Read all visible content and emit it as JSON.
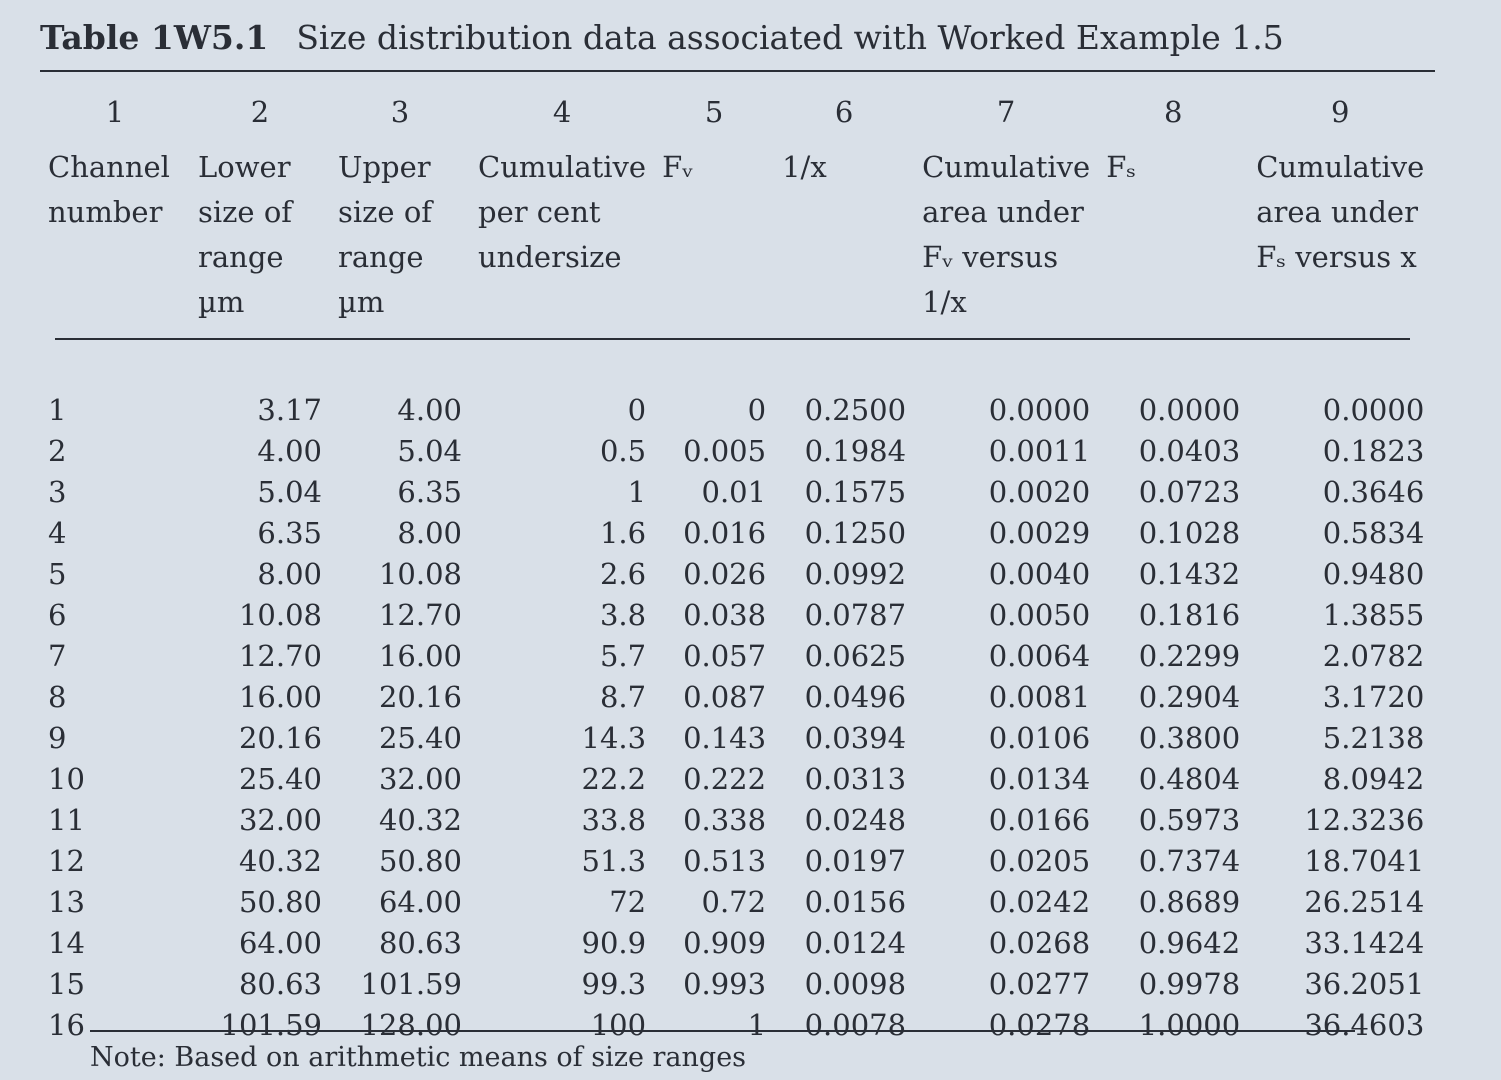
{
  "title": {
    "label": "Table 1W5.1",
    "text": "Size distribution data associated with Worked Example 1.5"
  },
  "table": {
    "headers": [
      {
        "number": "1",
        "label": [
          "Channel",
          "number"
        ]
      },
      {
        "number": "2",
        "label": [
          "Lower",
          "size of",
          "range",
          "µm"
        ]
      },
      {
        "number": "3",
        "label": [
          "Upper",
          "size of",
          "range",
          "µm"
        ]
      },
      {
        "number": "4",
        "label": [
          "Cumulative",
          "per cent",
          "undersize"
        ]
      },
      {
        "number": "5",
        "label": [
          "Fᵥ"
        ]
      },
      {
        "number": "6",
        "label": [
          "1/x"
        ]
      },
      {
        "number": "7",
        "label": [
          "Cumulative",
          "area under",
          "Fᵥ versus",
          "1/x"
        ]
      },
      {
        "number": "8",
        "label": [
          "Fₛ"
        ]
      },
      {
        "number": "9",
        "label": [
          "Cumulative",
          "area under",
          "Fₛ versus x"
        ]
      }
    ],
    "rows": [
      [
        "1",
        "3.17",
        "4.00",
        "0",
        "0",
        "0.2500",
        "0.0000",
        "0.0000",
        "0.0000"
      ],
      [
        "2",
        "4.00",
        "5.04",
        "0.5",
        "0.005",
        "0.1984",
        "0.0011",
        "0.0403",
        "0.1823"
      ],
      [
        "3",
        "5.04",
        "6.35",
        "1",
        "0.01",
        "0.1575",
        "0.0020",
        "0.0723",
        "0.3646"
      ],
      [
        "4",
        "6.35",
        "8.00",
        "1.6",
        "0.016",
        "0.1250",
        "0.0029",
        "0.1028",
        "0.5834"
      ],
      [
        "5",
        "8.00",
        "10.08",
        "2.6",
        "0.026",
        "0.0992",
        "0.0040",
        "0.1432",
        "0.9480"
      ],
      [
        "6",
        "10.08",
        "12.70",
        "3.8",
        "0.038",
        "0.0787",
        "0.0050",
        "0.1816",
        "1.3855"
      ],
      [
        "7",
        "12.70",
        "16.00",
        "5.7",
        "0.057",
        "0.0625",
        "0.0064",
        "0.2299",
        "2.0782"
      ],
      [
        "8",
        "16.00",
        "20.16",
        "8.7",
        "0.087",
        "0.0496",
        "0.0081",
        "0.2904",
        "3.1720"
      ],
      [
        "9",
        "20.16",
        "25.40",
        "14.3",
        "0.143",
        "0.0394",
        "0.0106",
        "0.3800",
        "5.2138"
      ],
      [
        "10",
        "25.40",
        "32.00",
        "22.2",
        "0.222",
        "0.0313",
        "0.0134",
        "0.4804",
        "8.0942"
      ],
      [
        "11",
        "32.00",
        "40.32",
        "33.8",
        "0.338",
        "0.0248",
        "0.0166",
        "0.5973",
        "12.3236"
      ],
      [
        "12",
        "40.32",
        "50.80",
        "51.3",
        "0.513",
        "0.0197",
        "0.0205",
        "0.7374",
        "18.7041"
      ],
      [
        "13",
        "50.80",
        "64.00",
        "72",
        "0.72",
        "0.0156",
        "0.0242",
        "0.8689",
        "26.2514"
      ],
      [
        "14",
        "64.00",
        "80.63",
        "90.9",
        "0.909",
        "0.0124",
        "0.0268",
        "0.9642",
        "33.1424"
      ],
      [
        "15",
        "80.63",
        "101.59",
        "99.3",
        "0.993",
        "0.0098",
        "0.0277",
        "0.9978",
        "36.2051"
      ],
      [
        "16",
        "101.59",
        "128.00",
        "100",
        "1",
        "0.0078",
        "0.0278",
        "1.0000",
        "36.4603"
      ]
    ]
  },
  "note": "Note: Based on arithmetic means of size ranges"
}
